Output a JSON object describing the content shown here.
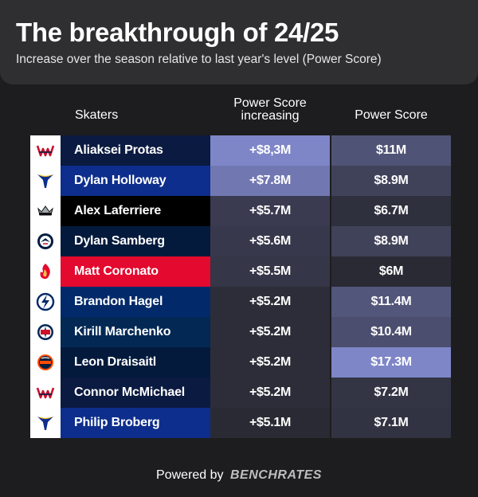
{
  "title": "The breakthrough of 24/25",
  "subtitle": "Increase over the season relative to last year's level (Power Score)",
  "columns": {
    "skaters": "Skaters",
    "increase_line1": "Power Score",
    "increase_line2": "increasing",
    "score": "Power Score"
  },
  "footer": {
    "prefix": "Powered by",
    "brand": "BENCHRATES"
  },
  "chart_data": {
    "type": "table",
    "rows": [
      {
        "team_icon": "capitals-logo-icon",
        "name": "Aliaksei Protas",
        "name_bg": "#0b1a40",
        "increase": "+$8,3M",
        "increase_value": 8.3,
        "score": "$11M",
        "score_value": 11
      },
      {
        "team_icon": "blues-logo-icon",
        "name": "Dylan Holloway",
        "name_bg": "#0d2e8c",
        "increase": "+$7.8M",
        "increase_value": 7.8,
        "score": "$8.9M",
        "score_value": 8.9
      },
      {
        "team_icon": "kings-logo-icon",
        "name": "Alex Laferriere",
        "name_bg": "#000000",
        "increase": "+$5.7M",
        "increase_value": 5.7,
        "score": "$6.7M",
        "score_value": 6.7
      },
      {
        "team_icon": "jets-logo-icon",
        "name": "Dylan Samberg",
        "name_bg": "#041a3c",
        "increase": "+$5.6M",
        "increase_value": 5.6,
        "score": "$8.9M",
        "score_value": 8.9
      },
      {
        "team_icon": "flames-logo-icon",
        "name": "Matt Coronato",
        "name_bg": "#e4092e",
        "increase": "+$5.5M",
        "increase_value": 5.5,
        "score": "$6M",
        "score_value": 6
      },
      {
        "team_icon": "lightning-logo-icon",
        "name": "Brandon Hagel",
        "name_bg": "#022a6a",
        "increase": "+$5.2M",
        "increase_value": 5.2,
        "score": "$11.4M",
        "score_value": 11.4
      },
      {
        "team_icon": "blue-jackets-logo-icon",
        "name": "Kirill Marchenko",
        "name_bg": "#032854",
        "increase": "+$5.2M",
        "increase_value": 5.2,
        "score": "$10.4M",
        "score_value": 10.4
      },
      {
        "team_icon": "oilers-logo-icon",
        "name": "Leon Draisaitl",
        "name_bg": "#041a3c",
        "increase": "+$5.2M",
        "increase_value": 5.2,
        "score": "$17.3M",
        "score_value": 17.3
      },
      {
        "team_icon": "capitals-logo-icon",
        "name": "Connor McMichael",
        "name_bg": "#0b1a40",
        "increase": "+$5.2M",
        "increase_value": 5.2,
        "score": "$7.2M",
        "score_value": 7.2
      },
      {
        "team_icon": "blues-logo-icon",
        "name": "Philip Broberg",
        "name_bg": "#0d2e8c",
        "increase": "+$5.1M",
        "increase_value": 5.1,
        "score": "$7.1M",
        "score_value": 7.1
      }
    ]
  }
}
